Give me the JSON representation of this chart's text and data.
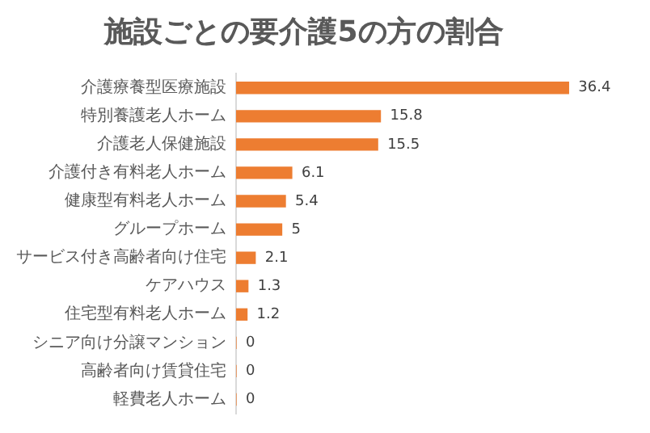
{
  "chart_data": {
    "type": "bar",
    "orientation": "horizontal",
    "title": "施設ごとの要介護5の方の割合",
    "categories": [
      "介護療養型医療施設",
      "特別養護老人ホーム",
      "介護老人保健施設",
      "介護付き有料老人ホーム",
      "健康型有料老人ホーム",
      "グループホーム",
      "サービス付き高齢者向け住宅",
      "ケアハウス",
      "住宅型有料老人ホーム",
      "シニア向け分譲マンション",
      "高齢者向け賃貸住宅",
      "軽費老人ホーム"
    ],
    "values": [
      36.4,
      15.8,
      15.5,
      6.1,
      5.4,
      5,
      2.1,
      1.3,
      1.2,
      0,
      0,
      0
    ],
    "color": "#ed7d31",
    "data_labels": true
  }
}
